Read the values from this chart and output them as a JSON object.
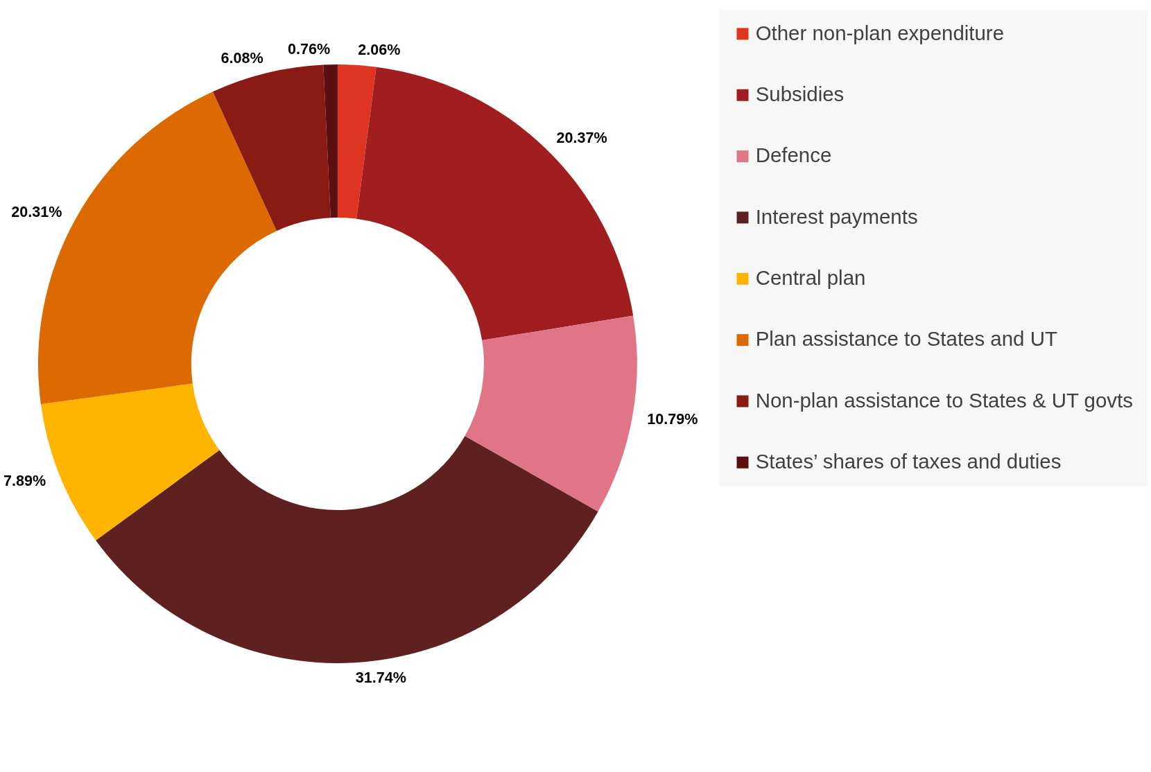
{
  "chart_data": {
    "type": "donut",
    "categories": [
      "Other non-plan expenditure",
      "Subsidies",
      "Defence",
      "Interest payments",
      "Central plan",
      "Plan assistance to States and UT",
      "Non-plan assistance to States & UT govts",
      "States’ shares of taxes and duties"
    ],
    "values": [
      2.06,
      20.37,
      10.79,
      31.74,
      7.89,
      20.31,
      6.08,
      0.76
    ],
    "value_labels": [
      "2.06%",
      "20.37%",
      "10.79%",
      "31.74%",
      "7.89%",
      "20.31%",
      "6.08%",
      "0.76%"
    ],
    "colors": [
      "#e03422",
      "#a01e20",
      "#e07585",
      "#5f2020",
      "#ffb400",
      "#dc6a00",
      "#8a1a14",
      "#5a1010"
    ],
    "legend": "right"
  }
}
